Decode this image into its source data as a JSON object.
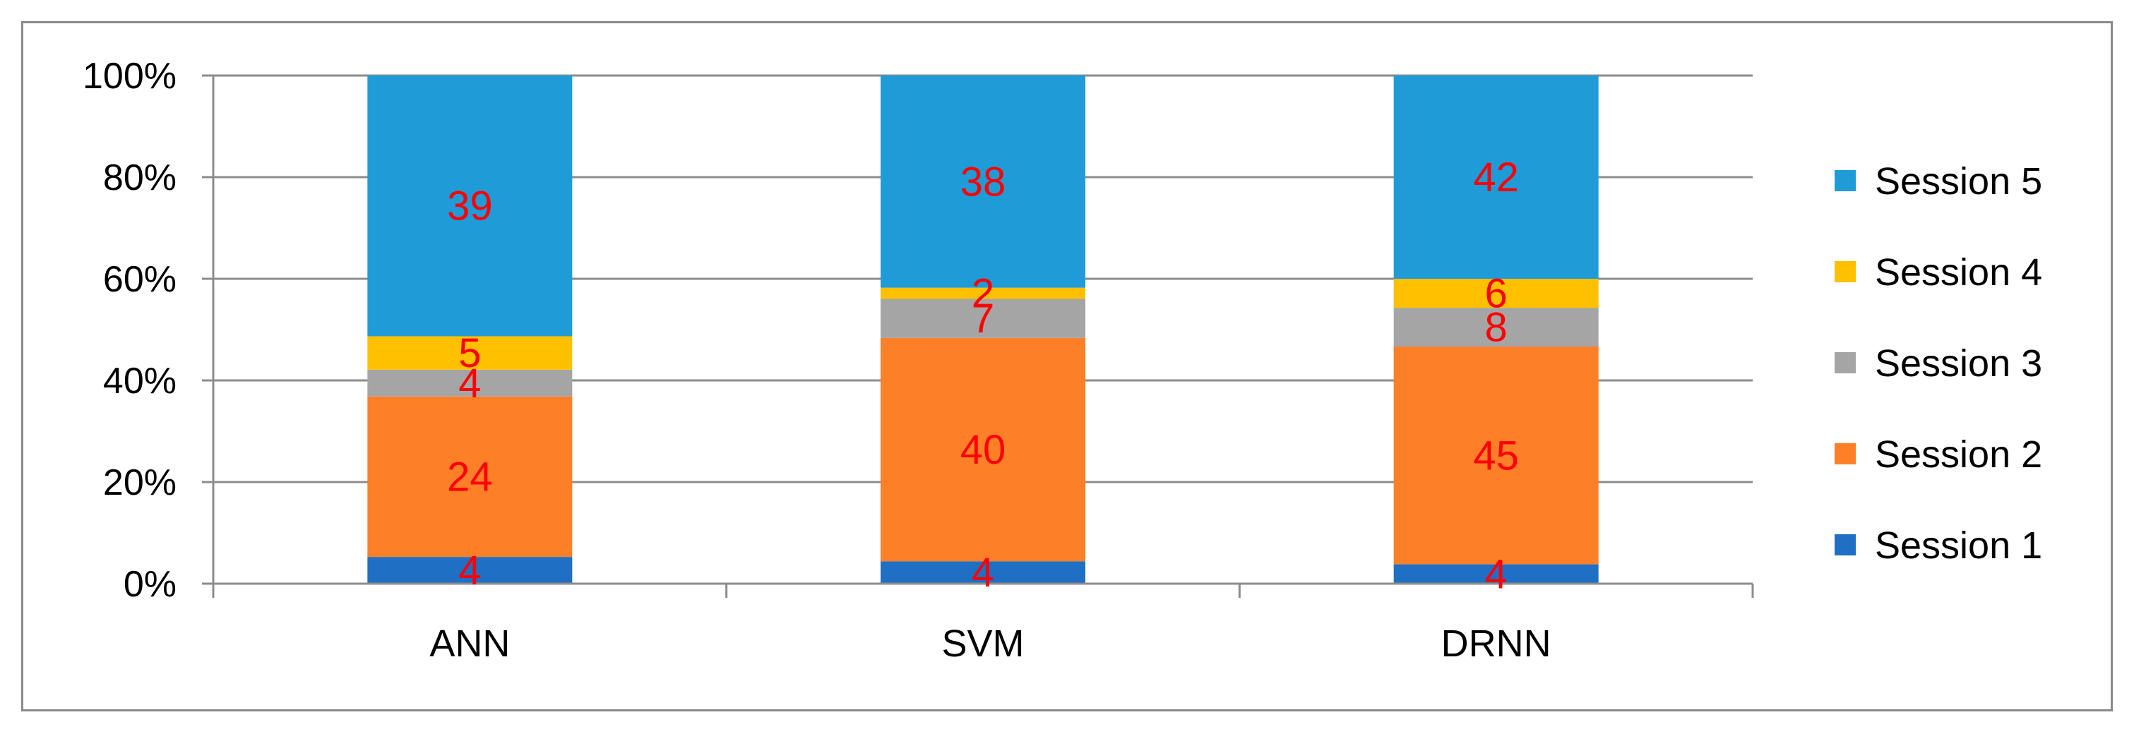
{
  "chart_data": {
    "type": "bar",
    "stacked": "percent",
    "categories": [
      "ANN",
      "SVM",
      "DRNN"
    ],
    "series": [
      {
        "name": "Session 1",
        "values": [
          4,
          4,
          4
        ],
        "color": "#1f6fc5"
      },
      {
        "name": "Session 2",
        "values": [
          24,
          40,
          45
        ],
        "color": "#fd7f28"
      },
      {
        "name": "Session 3",
        "values": [
          4,
          7,
          8
        ],
        "color": "#a5a5a5"
      },
      {
        "name": "Session 4",
        "values": [
          5,
          2,
          6
        ],
        "color": "#ffc000"
      },
      {
        "name": "Session 5",
        "values": [
          39,
          38,
          42
        ],
        "color": "#1f9cd8"
      }
    ],
    "y_ticks": [
      "0%",
      "20%",
      "40%",
      "60%",
      "80%",
      "100%"
    ],
    "ylim": [
      0,
      100
    ],
    "legend": "right",
    "legend_order": [
      "Session 5",
      "Session 4",
      "Session 3",
      "Session 2",
      "Session 1"
    ],
    "data_label_color": "#ff0000",
    "grid": true
  }
}
